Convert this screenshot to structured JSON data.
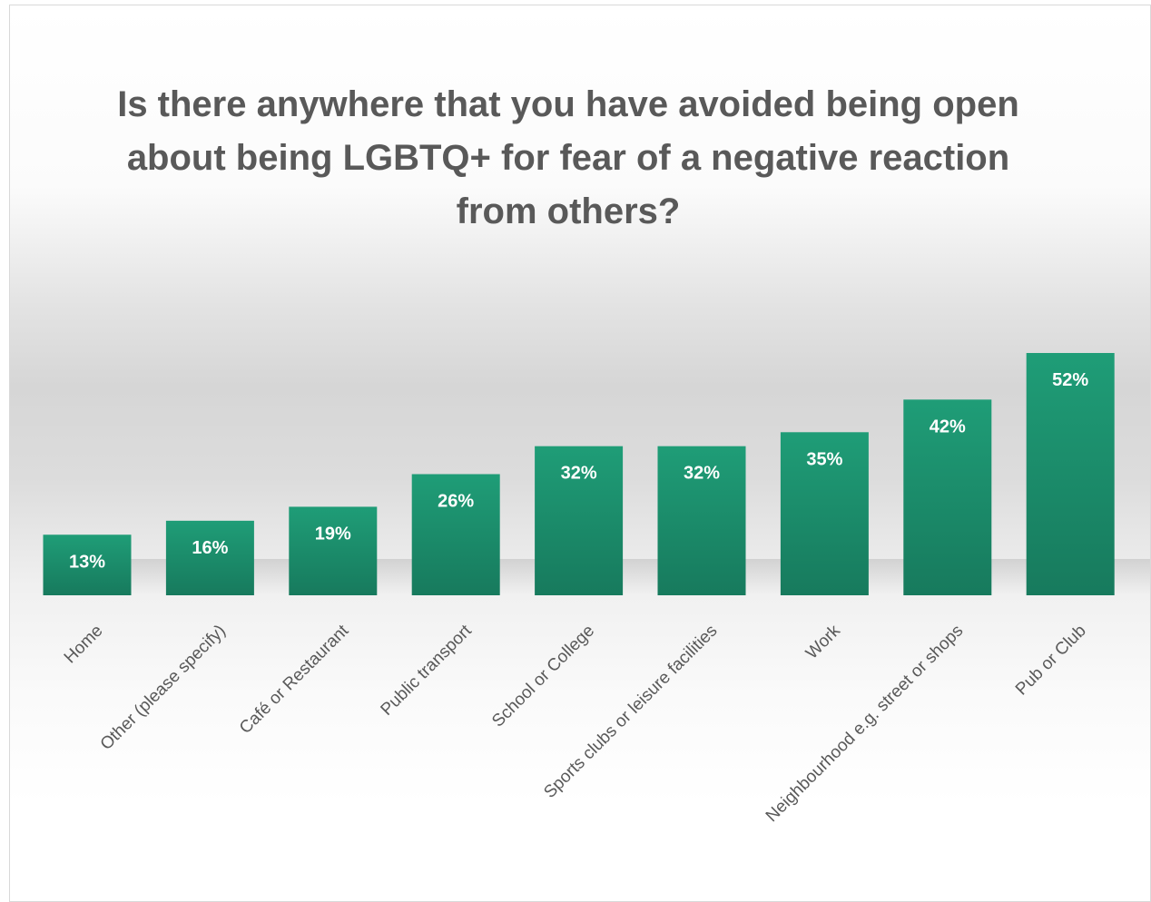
{
  "chart_data": {
    "type": "bar",
    "title": "Is there anywhere that you have avoided being open about being LGBTQ+ for fear of a negative reaction from others?",
    "categories": [
      "Home",
      "Other (please specify)",
      "Café or Restaurant",
      "Public transport",
      "School or College",
      "Sports clubs or leisure facilities",
      "Work",
      "Neighbourhood e.g. street or shops",
      "Pub or Club"
    ],
    "values": [
      13,
      16,
      19,
      26,
      32,
      32,
      35,
      42,
      52
    ],
    "value_labels": [
      "13%",
      "16%",
      "19%",
      "26%",
      "32%",
      "32%",
      "35%",
      "42%",
      "52%"
    ],
    "ylim": [
      0,
      52
    ],
    "grid": false,
    "legend": "none",
    "xlabel": "",
    "ylabel": "",
    "colors": {
      "bar_top": "#1f9d77",
      "bar_bottom": "#177a5d",
      "label": "#ffffff",
      "text": "#595959"
    }
  }
}
